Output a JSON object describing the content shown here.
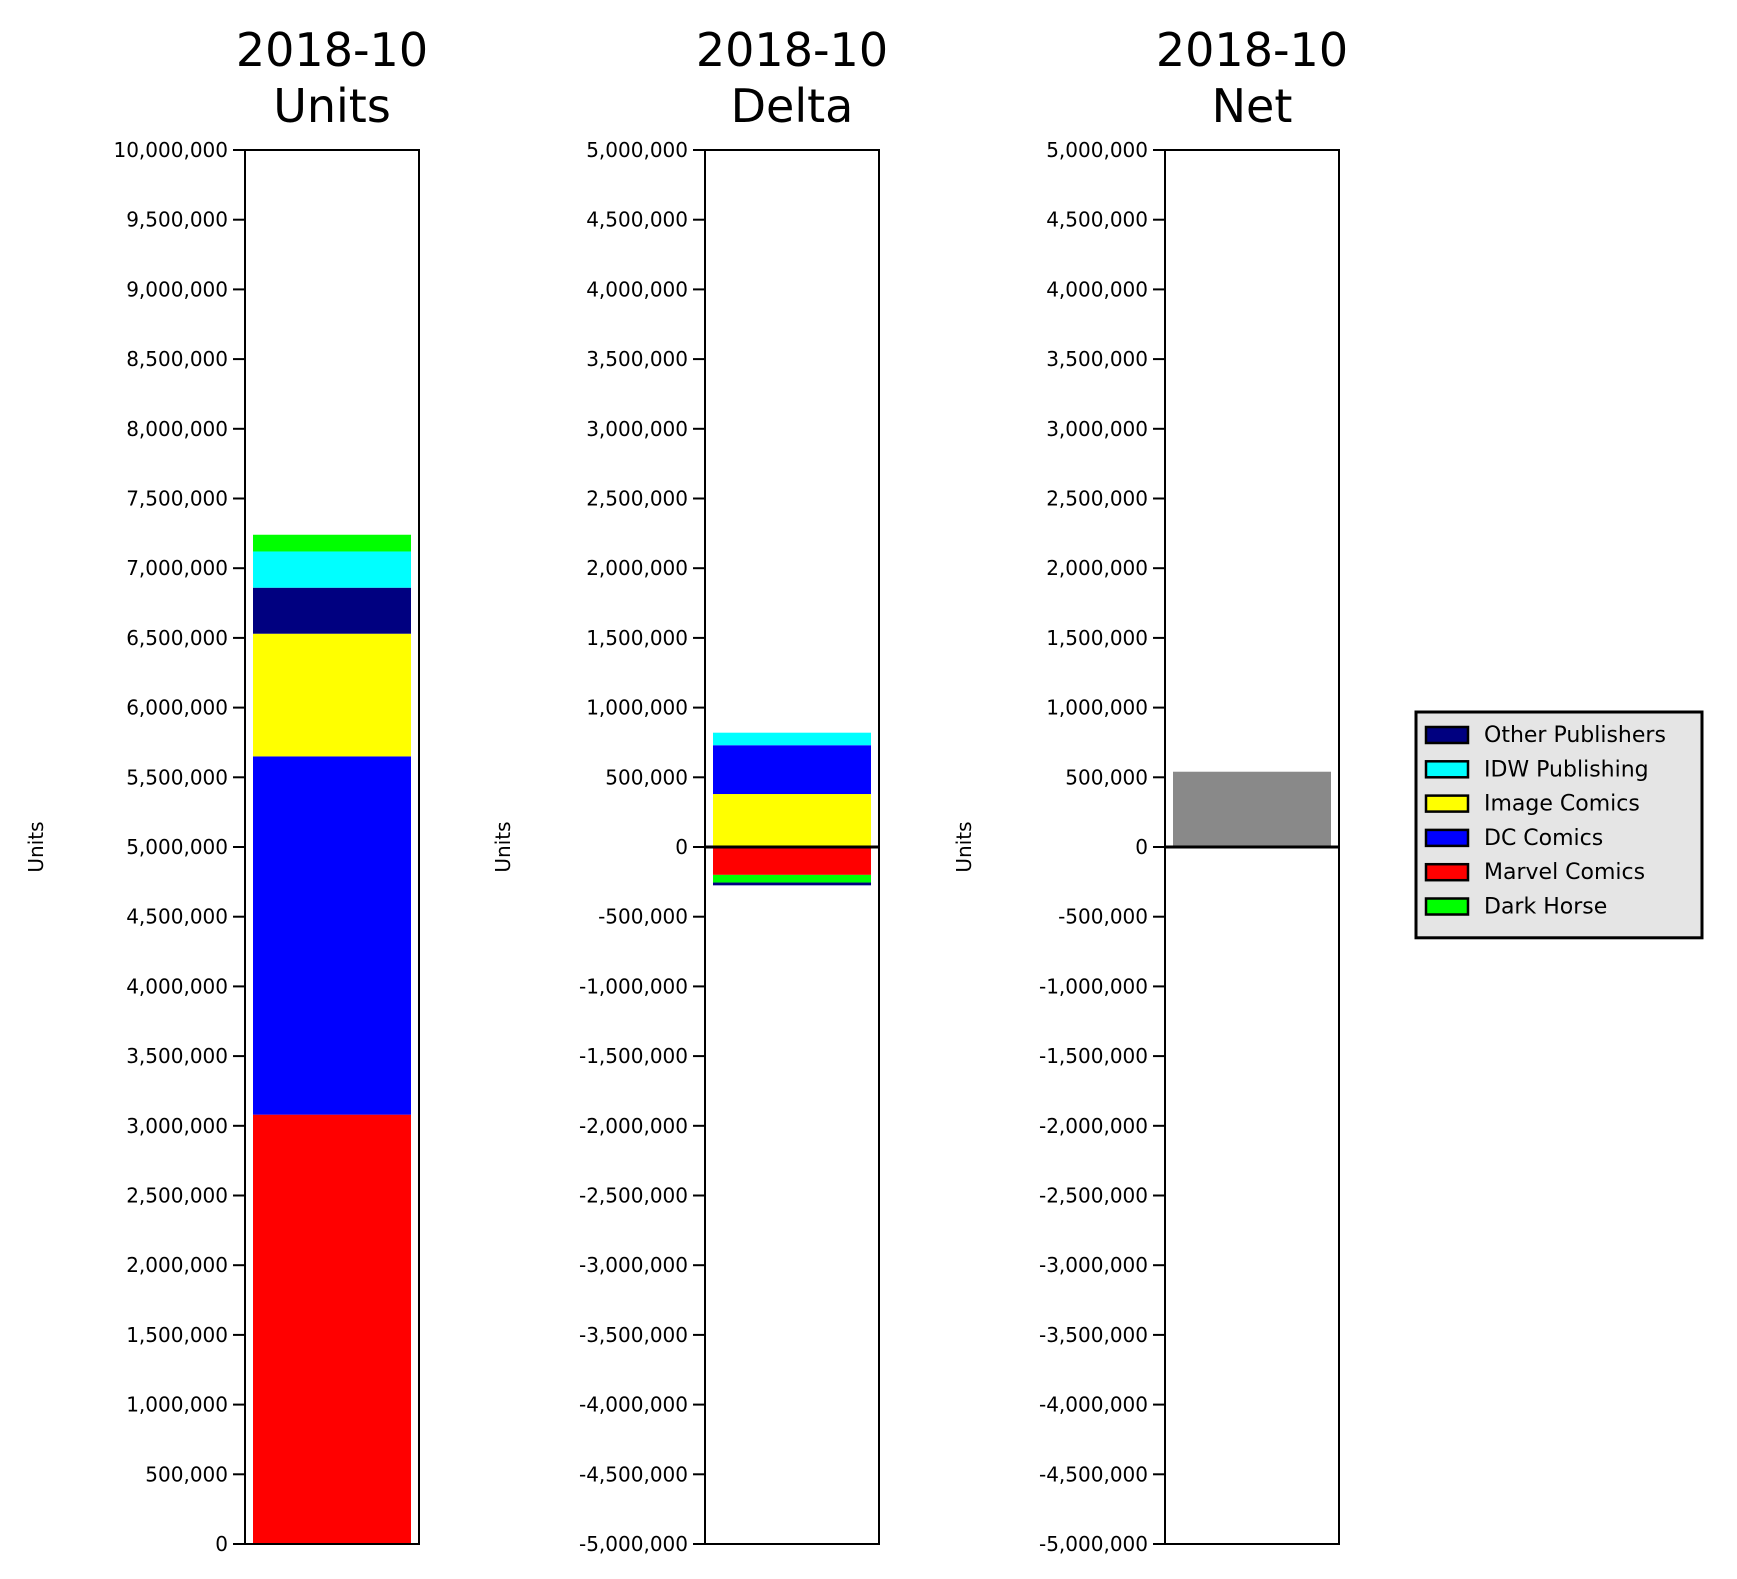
{
  "chart_data": [
    {
      "type": "bar",
      "stacked": true,
      "title_line1": "2018-10",
      "title_line2": "Units",
      "ylabel": "Units",
      "ylim": [
        0,
        10000000
      ],
      "yticks": [
        0,
        500000,
        1000000,
        1500000,
        2000000,
        2500000,
        3000000,
        3500000,
        4000000,
        4500000,
        5000000,
        5500000,
        6000000,
        6500000,
        7000000,
        7500000,
        8000000,
        8500000,
        9000000,
        9500000,
        10000000
      ],
      "ytick_labels": [
        "0",
        "500,000",
        "1,000,000",
        "1,500,000",
        "2,000,000",
        "2,500,000",
        "3,000,000",
        "3,500,000",
        "4,000,000",
        "4,500,000",
        "5,000,000",
        "5,500,000",
        "6,000,000",
        "6,500,000",
        "7,000,000",
        "7,500,000",
        "8,000,000",
        "8,500,000",
        "9,000,000",
        "9,500,000",
        "10,000,000"
      ],
      "series": [
        {
          "name": "Marvel Comics",
          "value": 3080000,
          "color": "#ff0000"
        },
        {
          "name": "DC Comics",
          "value": 2570000,
          "color": "#0000ff"
        },
        {
          "name": "Image Comics",
          "value": 880000,
          "color": "#ffff00"
        },
        {
          "name": "Other Publishers",
          "value": 330000,
          "color": "#000080"
        },
        {
          "name": "IDW Publishing",
          "value": 260000,
          "color": "#00ffff"
        },
        {
          "name": "Dark Horse",
          "value": 120000,
          "color": "#00ff00"
        }
      ]
    },
    {
      "type": "bar",
      "stacked": true,
      "title_line1": "2018-10",
      "title_line2": "Delta",
      "ylabel": "Units",
      "ylim": [
        -5000000,
        5000000
      ],
      "zero_line": true,
      "yticks": [
        -5000000,
        -4500000,
        -4000000,
        -3500000,
        -3000000,
        -2500000,
        -2000000,
        -1500000,
        -1000000,
        -500000,
        0,
        500000,
        1000000,
        1500000,
        2000000,
        2500000,
        3000000,
        3500000,
        4000000,
        4500000,
        5000000
      ],
      "ytick_labels": [
        "-5,000,000",
        "-4,500,000",
        "-4,000,000",
        "-3,500,000",
        "-3,000,000",
        "-2,500,000",
        "-2,000,000",
        "-1,500,000",
        "-1,000,000",
        "-500,000",
        "0",
        "500,000",
        "1,000,000",
        "1,500,000",
        "2,000,000",
        "2,500,000",
        "3,000,000",
        "3,500,000",
        "4,000,000",
        "4,500,000",
        "5,000,000"
      ],
      "series": [
        {
          "name": "Image Comics",
          "value": 380000,
          "color": "#ffff00"
        },
        {
          "name": "DC Comics",
          "value": 350000,
          "color": "#0000ff"
        },
        {
          "name": "IDW Publishing",
          "value": 90000,
          "color": "#00ffff"
        },
        {
          "name": "Marvel Comics",
          "value": -200000,
          "color": "#ff0000"
        },
        {
          "name": "Dark Horse",
          "value": -55000,
          "color": "#00ff00"
        },
        {
          "name": "Other Publishers",
          "value": -20000,
          "color": "#000080"
        }
      ]
    },
    {
      "type": "bar",
      "stacked": false,
      "title_line1": "2018-10",
      "title_line2": "Net",
      "ylabel": "Units",
      "ylim": [
        -5000000,
        5000000
      ],
      "zero_line": true,
      "yticks": [
        -5000000,
        -4500000,
        -4000000,
        -3500000,
        -3000000,
        -2500000,
        -2000000,
        -1500000,
        -1000000,
        -500000,
        0,
        500000,
        1000000,
        1500000,
        2000000,
        2500000,
        3000000,
        3500000,
        4000000,
        4500000,
        5000000
      ],
      "ytick_labels": [
        "-5,000,000",
        "-4,500,000",
        "-4,000,000",
        "-3,500,000",
        "-3,000,000",
        "-2,500,000",
        "-2,000,000",
        "-1,500,000",
        "-1,000,000",
        "-500,000",
        "0",
        "500,000",
        "1,000,000",
        "1,500,000",
        "2,000,000",
        "2,500,000",
        "3,000,000",
        "3,500,000",
        "4,000,000",
        "4,500,000",
        "5,000,000"
      ],
      "series": [
        {
          "value": 540000,
          "color": "#898989"
        }
      ]
    }
  ],
  "legend": {
    "placement": "right",
    "entries": [
      {
        "label": "Other Publishers",
        "color": "#000080"
      },
      {
        "label": "IDW Publishing",
        "color": "#00ffff"
      },
      {
        "label": "Image Comics",
        "color": "#ffff00"
      },
      {
        "label": "DC Comics",
        "color": "#0000ff"
      },
      {
        "label": "Marvel Comics",
        "color": "#ff0000"
      },
      {
        "label": "Dark Horse",
        "color": "#00ff00"
      }
    ]
  }
}
